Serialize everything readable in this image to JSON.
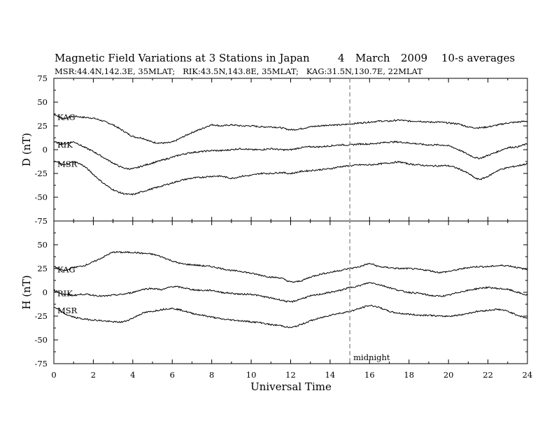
{
  "title": "Magnetic Field Variations at 3 Stations in Japan",
  "date": {
    "day": "4",
    "month": "March",
    "year": "2009"
  },
  "averaging": "10-s averages",
  "stations_line": "MSR:44.4N,142.3E, 35MLAT;   RIK:43.5N,143.8E, 35MLAT;   KAG:31.5N,130.7E, 22MLAT",
  "chart_data": {
    "type": "line",
    "xlabel": "Universal Time",
    "xlim": [
      0,
      24
    ],
    "x_ticks": [
      0,
      2,
      4,
      6,
      8,
      10,
      12,
      14,
      16,
      18,
      20,
      22,
      24
    ],
    "midnight": {
      "x": 15,
      "label": "midnight"
    },
    "panels": [
      {
        "id": "D",
        "ylabel": "D (nT)",
        "ylim": [
          -75,
          75
        ],
        "y_ticks": [
          75,
          50,
          25,
          0,
          -25,
          -50,
          -75
        ],
        "series": [
          {
            "name": "KAG",
            "x": [
              0,
              0.5,
              1,
              1.5,
              2,
              2.5,
              3,
              3.5,
              4,
              4.5,
              5,
              5.5,
              6,
              6.5,
              7,
              7.5,
              8,
              8.5,
              9,
              9.5,
              10,
              10.5,
              11,
              11.5,
              12,
              12.5,
              13,
              13.5,
              14,
              14.5,
              15,
              15.5,
              16,
              16.5,
              17,
              17.5,
              18,
              18.5,
              19,
              19.5,
              20,
              20.5,
              21,
              21.5,
              22,
              22.5,
              23,
              23.5,
              24
            ],
            "y": [
              37,
              33,
              35,
              34,
              33,
              30,
              26,
              20,
              14,
              12,
              8,
              7,
              8,
              13,
              18,
              22,
              26,
              25,
              26,
              25,
              25,
              24,
              24,
              23,
              21,
              22,
              24,
              25,
              26,
              26,
              27,
              28,
              29,
              30,
              30,
              31,
              30,
              30,
              29,
              29,
              28,
              27,
              24,
              23,
              24,
              26,
              28,
              29,
              30
            ]
          },
          {
            "name": "RIK",
            "x": [
              0,
              0.5,
              1,
              1.5,
              2,
              2.5,
              3,
              3.5,
              4,
              4.5,
              5,
              5.5,
              6,
              6.5,
              7,
              7.5,
              8,
              8.5,
              9,
              9.5,
              10,
              10.5,
              11,
              11.5,
              12,
              12.5,
              13,
              13.5,
              14,
              14.5,
              15,
              15.5,
              16,
              16.5,
              17,
              17.5,
              18,
              18.5,
              19,
              19.5,
              20,
              20.5,
              21,
              21.5,
              22,
              22.5,
              23,
              23.5,
              24
            ],
            "y": [
              8,
              6,
              8,
              3,
              -2,
              -8,
              -14,
              -19,
              -20,
              -17,
              -14,
              -11,
              -8,
              -5,
              -3,
              -2,
              -1,
              -1,
              0,
              1,
              0,
              0,
              1,
              0,
              0,
              2,
              3,
              3,
              4,
              5,
              5,
              6,
              6,
              7,
              8,
              8,
              7,
              6,
              5,
              5,
              4,
              0,
              -5,
              -9,
              -6,
              -2,
              2,
              3,
              6
            ]
          },
          {
            "name": "MSR",
            "x": [
              0,
              0.5,
              1,
              1.5,
              2,
              2.5,
              3,
              3.5,
              4,
              4.5,
              5,
              5.5,
              6,
              6.5,
              7,
              7.5,
              8,
              8.5,
              9,
              9.5,
              10,
              10.5,
              11,
              11.5,
              12,
              12.5,
              13,
              13.5,
              14,
              14.5,
              15,
              15.5,
              16,
              16.5,
              17,
              17.5,
              18,
              18.5,
              19,
              19.5,
              20,
              20.5,
              21,
              21.5,
              22,
              22.5,
              23,
              23.5,
              24
            ],
            "y": [
              -12,
              -16,
              -13,
              -17,
              -26,
              -35,
              -42,
              -46,
              -47,
              -44,
              -41,
              -38,
              -35,
              -32,
              -30,
              -29,
              -28,
              -28,
              -30,
              -28,
              -27,
              -25,
              -25,
              -24,
              -25,
              -23,
              -22,
              -21,
              -20,
              -18,
              -17,
              -16,
              -16,
              -15,
              -14,
              -13,
              -15,
              -16,
              -17,
              -17,
              -17,
              -20,
              -25,
              -31,
              -28,
              -22,
              -19,
              -17,
              -15
            ]
          }
        ]
      },
      {
        "id": "H",
        "ylabel": "H (nT)",
        "ylim": [
          -75,
          75
        ],
        "y_ticks": [
          75,
          50,
          25,
          0,
          -25,
          -50,
          -75
        ],
        "series": [
          {
            "name": "KAG",
            "x": [
              0,
              0.5,
              1,
              1.5,
              2,
              2.5,
              3,
              3.5,
              4,
              4.5,
              5,
              5.5,
              6,
              6.5,
              7,
              7.5,
              8,
              8.5,
              9,
              9.5,
              10,
              10.5,
              11,
              11.5,
              12,
              12.5,
              13,
              13.5,
              14,
              14.5,
              15,
              15.5,
              16,
              16.5,
              17,
              17.5,
              18,
              18.5,
              19,
              19.5,
              20,
              20.5,
              21,
              21.5,
              22,
              22.5,
              23,
              23.5,
              24
            ],
            "y": [
              27,
              23,
              26,
              28,
              32,
              37,
              42,
              42,
              42,
              41,
              40,
              37,
              33,
              30,
              29,
              28,
              27,
              25,
              23,
              22,
              20,
              18,
              16,
              15,
              11,
              12,
              16,
              19,
              21,
              23,
              25,
              27,
              30,
              27,
              26,
              25,
              25,
              24,
              23,
              21,
              22,
              24,
              26,
              27,
              27,
              28,
              28,
              26,
              24
            ]
          },
          {
            "name": "RIK",
            "x": [
              0,
              0.5,
              1,
              1.5,
              2,
              2.5,
              3,
              3.5,
              4,
              4.5,
              5,
              5.5,
              6,
              6.5,
              7,
              7.5,
              8,
              8.5,
              9,
              9.5,
              10,
              10.5,
              11,
              11.5,
              12,
              12.5,
              13,
              13.5,
              14,
              14.5,
              15,
              15.5,
              16,
              16.5,
              17,
              17.5,
              18,
              18.5,
              19,
              19.5,
              20,
              20.5,
              21,
              21.5,
              22,
              22.5,
              23,
              23.5,
              24
            ],
            "y": [
              2,
              -2,
              -3,
              -2,
              -3,
              -4,
              -3,
              -2,
              0,
              3,
              4,
              3,
              6,
              5,
              3,
              2,
              2,
              0,
              -1,
              -2,
              -2,
              -4,
              -6,
              -8,
              -10,
              -7,
              -4,
              -2,
              0,
              2,
              5,
              7,
              10,
              8,
              5,
              2,
              0,
              -1,
              -3,
              -4,
              -3,
              0,
              2,
              4,
              5,
              4,
              3,
              0,
              -3
            ]
          },
          {
            "name": "MSR",
            "x": [
              0,
              0.5,
              1,
              1.5,
              2,
              2.5,
              3,
              3.5,
              4,
              4.5,
              5,
              5.5,
              6,
              6.5,
              7,
              7.5,
              8,
              8.5,
              9,
              9.5,
              10,
              10.5,
              11,
              11.5,
              12,
              12.5,
              13,
              13.5,
              14,
              14.5,
              15,
              15.5,
              16,
              16.5,
              17,
              17.5,
              18,
              18.5,
              19,
              19.5,
              20,
              20.5,
              21,
              21.5,
              22,
              22.5,
              23,
              23.5,
              24
            ],
            "y": [
              -16,
              -22,
              -26,
              -28,
              -29,
              -30,
              -31,
              -31,
              -27,
              -22,
              -20,
              -18,
              -17,
              -19,
              -22,
              -24,
              -26,
              -28,
              -29,
              -30,
              -31,
              -32,
              -34,
              -35,
              -37,
              -34,
              -30,
              -27,
              -24,
              -22,
              -20,
              -17,
              -14,
              -16,
              -20,
              -22,
              -23,
              -24,
              -24,
              -25,
              -25,
              -24,
              -22,
              -20,
              -19,
              -18,
              -20,
              -24,
              -27
            ]
          }
        ]
      }
    ]
  }
}
